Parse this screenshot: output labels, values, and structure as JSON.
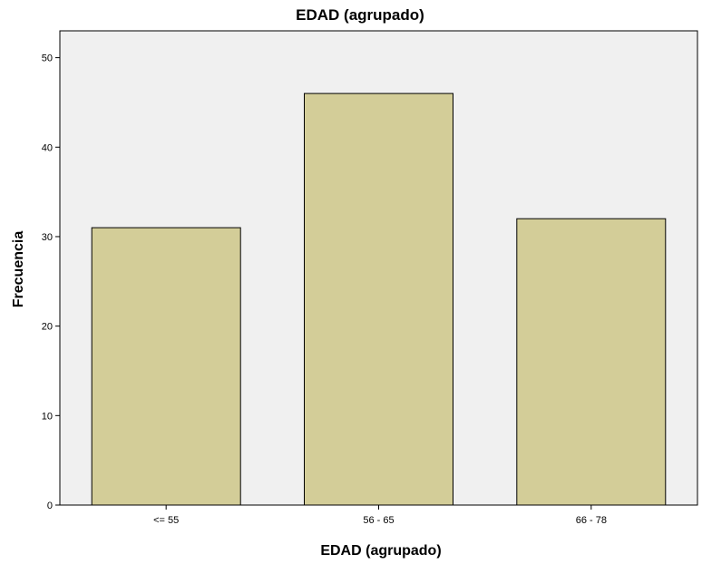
{
  "chart_data": {
    "type": "bar",
    "title": "EDAD  (agrupado)",
    "xlabel": "EDAD  (agrupado)",
    "ylabel": "Frecuencia",
    "categories": [
      "<= 55",
      "56 - 65",
      "66 - 78"
    ],
    "values": [
      31,
      46,
      32
    ],
    "ylim": [
      0,
      53
    ],
    "yticks": [
      0,
      10,
      20,
      30,
      40,
      50
    ],
    "grid": false,
    "legend": "none",
    "colors": {
      "bar_fill": "#d3cd98",
      "bar_stroke": "#000000",
      "plot_background": "#f0f0f0",
      "axis": "#000000"
    }
  }
}
